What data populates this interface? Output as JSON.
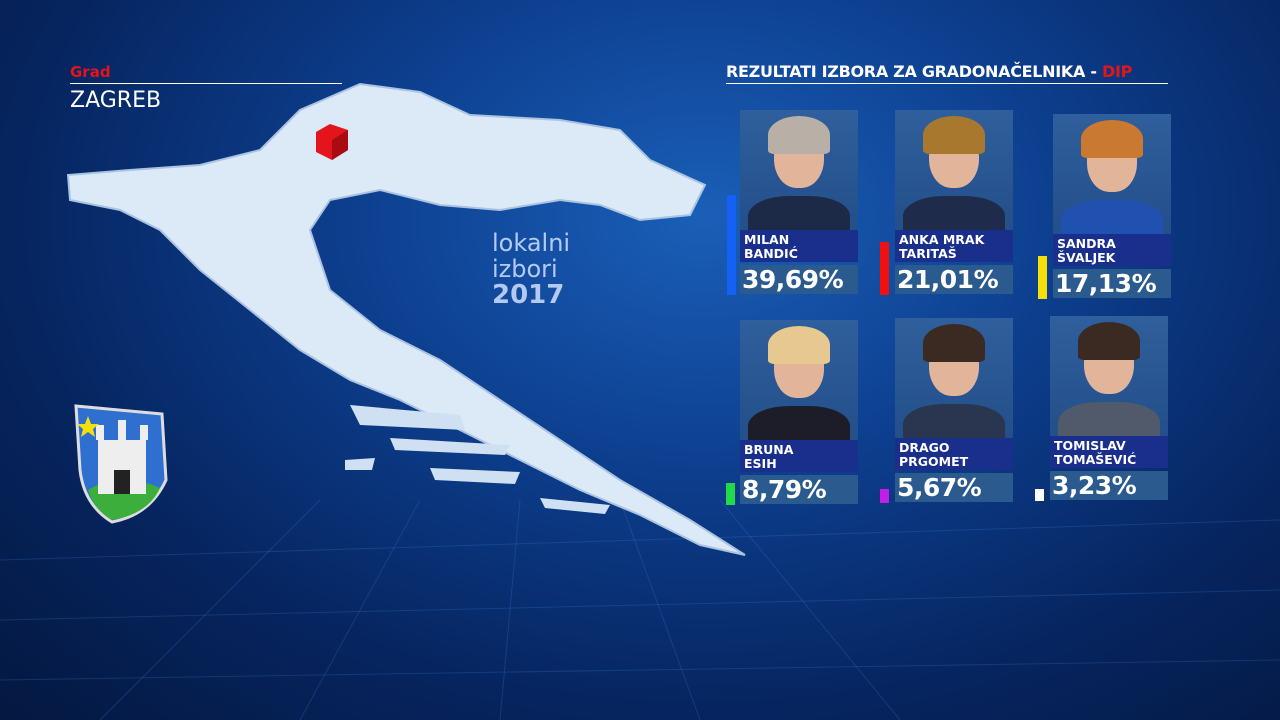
{
  "header": {
    "grad_label": "Grad",
    "city": "ZAGREB",
    "title": "REZULTATI IZBORA ZA GRADONAČELNIKA - ",
    "title_source": "DIP"
  },
  "logo": {
    "line1": "lokalni",
    "line2": "izbori",
    "year": "2017"
  },
  "colors": {
    "accent_red": "#e3141b",
    "name_bg": "#1a2f8c",
    "pct_bg": "#2a5a8e"
  },
  "candidates": [
    {
      "first": "MILAN",
      "last": "BANDIĆ",
      "percent": "39,69%",
      "value": 39.69,
      "color": "#1560f5"
    },
    {
      "first": "ANKA MRAK",
      "last": "TARITAŠ",
      "percent": "21,01%",
      "value": 21.01,
      "color": "#f01010"
    },
    {
      "first": "SANDRA",
      "last": "ŠVALJEK",
      "percent": "17,13%",
      "value": 17.13,
      "color": "#f5e10a"
    },
    {
      "first": "BRUNA",
      "last": "ESIH",
      "percent": "8,79%",
      "value": 8.79,
      "color": "#22d94a"
    },
    {
      "first": "DRAGO",
      "last": "PRGOMET",
      "percent": "5,67%",
      "value": 5.67,
      "color": "#c21ee8"
    },
    {
      "first": "TOMISLAV",
      "last": "TOMAŠEVIĆ",
      "percent": "3,23%",
      "value": 3.23,
      "color": "#ffffff"
    }
  ]
}
